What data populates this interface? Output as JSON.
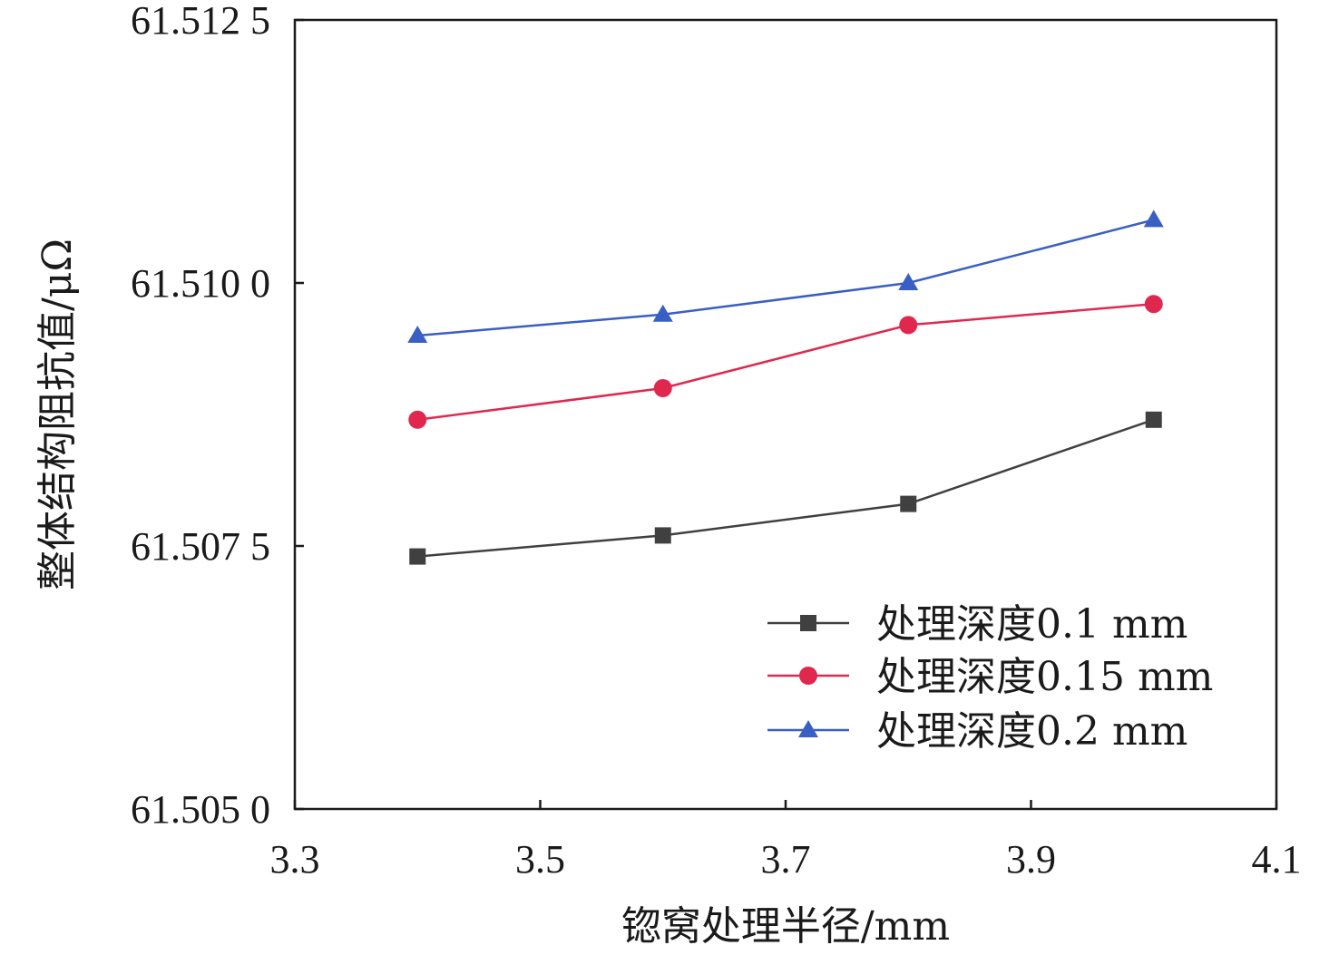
{
  "chart_data": {
    "type": "line",
    "xlabel": "锪窝处理半径/mm",
    "ylabel": "整体结构阻抗值/μΩ",
    "xlim": [
      3.3,
      4.1
    ],
    "ylim": [
      61.505,
      61.5125
    ],
    "x_ticks": [
      "3.3",
      "3.5",
      "3.7",
      "3.9",
      "4.1"
    ],
    "y_ticks": [
      "61.505 0",
      "61.507 5",
      "61.510 0",
      "61.512 5"
    ],
    "x": [
      3.4,
      3.6,
      3.8,
      4.0
    ],
    "grid": false,
    "legend_position": "bottom-right",
    "series": [
      {
        "name": "处理深度0.1 mm",
        "values": [
          61.5074,
          61.5076,
          61.5079,
          61.5087
        ],
        "color": "#404040",
        "marker": "square"
      },
      {
        "name": "处理深度0.15 mm",
        "values": [
          61.5087,
          61.509,
          61.5096,
          61.5098
        ],
        "color": "#e0284f",
        "marker": "circle"
      },
      {
        "name": "处理深度0.2 mm",
        "values": [
          61.5095,
          61.5097,
          61.51,
          61.5106
        ],
        "color": "#3a5fc4",
        "marker": "triangle"
      }
    ]
  }
}
